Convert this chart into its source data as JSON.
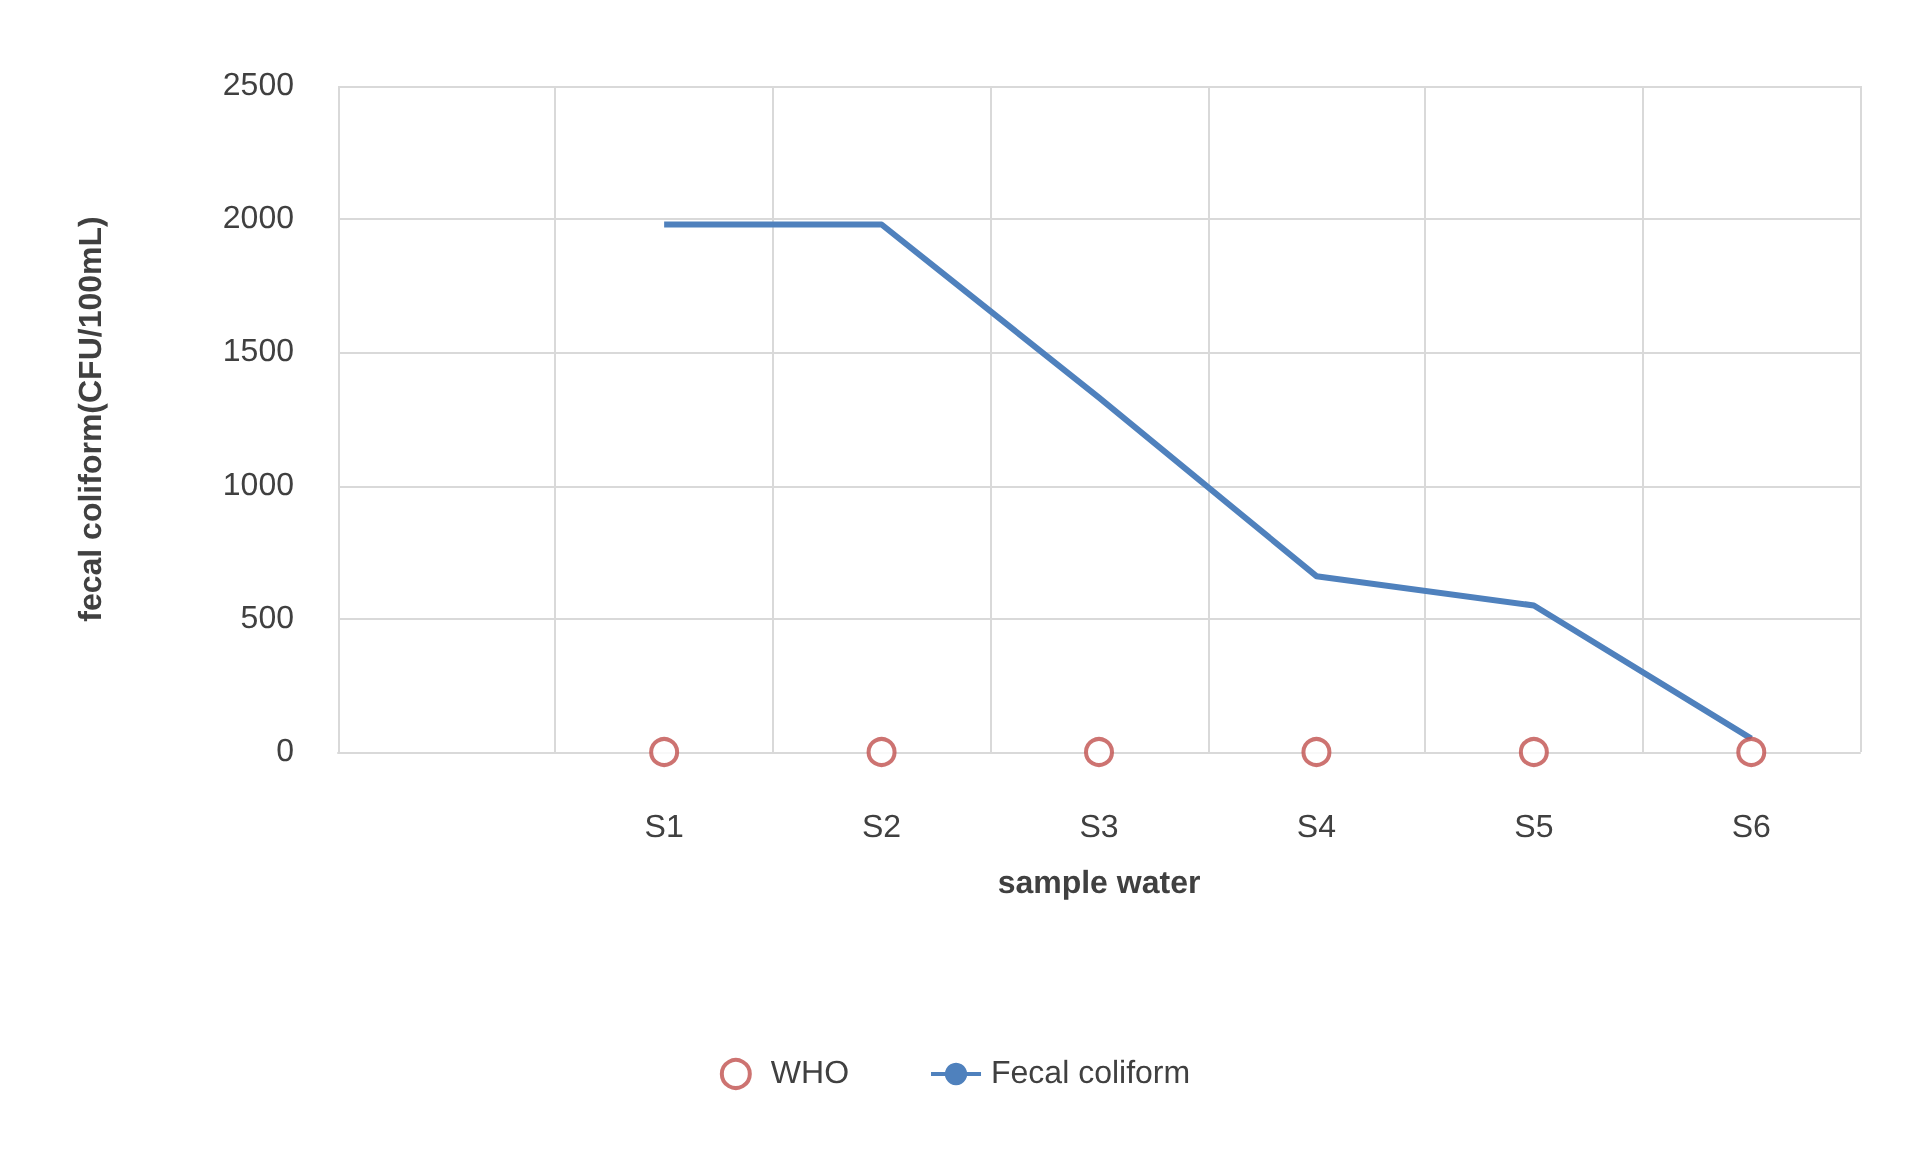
{
  "chart_data": {
    "type": "line",
    "xlabel": "sample water",
    "ylabel": "fecal coliform(CFU/100mL)",
    "categories": [
      null,
      "S1",
      "S2",
      "S3",
      "S4",
      "S5",
      "S6"
    ],
    "series": [
      {
        "name": "WHO",
        "type": "scatter",
        "color": "#c0504d",
        "marker": "circle",
        "values": [
          null,
          0,
          0,
          0,
          0,
          0,
          0
        ]
      },
      {
        "name": "Fecal coliform",
        "color": "#4f81bd",
        "marker": "none",
        "values": [
          null,
          1980,
          1980,
          1330,
          660,
          550,
          50
        ]
      }
    ],
    "ylim": [
      0,
      2500
    ],
    "yticks": [
      0,
      500,
      1000,
      1500,
      2000,
      2500
    ],
    "grid": true,
    "legend": "bottom"
  }
}
